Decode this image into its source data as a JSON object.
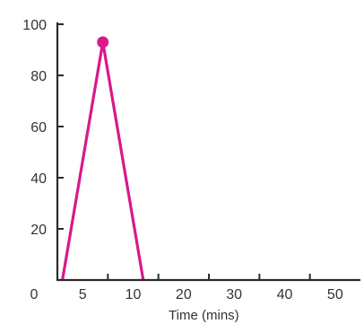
{
  "chart_data": {
    "type": "line",
    "title": "",
    "xlabel": "Time (mins)",
    "ylabel": "",
    "origin_label": "0",
    "y_ticks": [
      {
        "value": 20,
        "label": "20"
      },
      {
        "value": 40,
        "label": "40"
      },
      {
        "value": 60,
        "label": "60"
      },
      {
        "value": 80,
        "label": "80"
      },
      {
        "value": 100,
        "label": "100"
      }
    ],
    "x_ticks": [
      {
        "value": 10,
        "label": "10"
      },
      {
        "value": 20,
        "label": "20"
      },
      {
        "value": 30,
        "label": "30"
      },
      {
        "value": 40,
        "label": "40"
      },
      {
        "value": 50,
        "label": "50"
      }
    ],
    "x_labels": [
      {
        "value": 5,
        "label": "5"
      },
      {
        "value": 15,
        "label": "10"
      },
      {
        "value": 25,
        "label": "20"
      },
      {
        "value": 35,
        "label": "30"
      },
      {
        "value": 45,
        "label": "40"
      },
      {
        "value": 55,
        "label": "50"
      }
    ],
    "xlim": [
      0,
      60
    ],
    "ylim": [
      0,
      100
    ],
    "series": [
      {
        "x": [
          1,
          9,
          17
        ],
        "y": [
          0,
          93,
          0
        ],
        "color": "#d9198c",
        "marker_index": 1
      }
    ],
    "grid": false,
    "legend": "none"
  }
}
